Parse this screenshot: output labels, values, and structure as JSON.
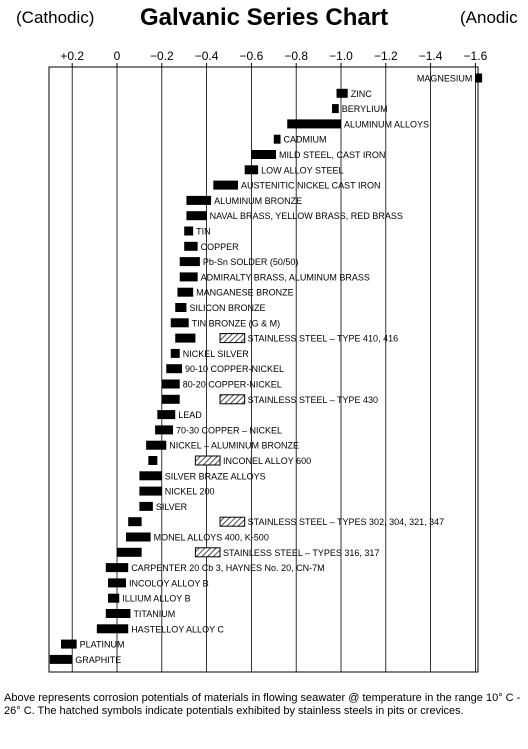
{
  "header": {
    "title": "Galvanic Series Chart",
    "left_note": "(Cathodic)",
    "right_note": "(Anodic"
  },
  "footer": {
    "text": "Above represents corrosion potentials of materials in flowing seawater @ temperature in the range 10° C - 26° C. The hatched symbols indicate potentials exhibited by stainless steels in pits or crevices."
  },
  "chart_data": {
    "type": "bar",
    "orientation": "horizontal-range",
    "title": "Galvanic Series Chart",
    "xlabel": "",
    "ylabel": "",
    "x_axis_reversed": true,
    "xlim": [
      0.3,
      -1.65
    ],
    "x_ticks": [
      0.2,
      0,
      -0.2,
      -0.4,
      -0.6,
      -0.8,
      -1.0,
      -1.2,
      -1.4,
      -1.6
    ],
    "x_tick_labels": [
      "+0.2",
      "0",
      "−0.2",
      "−0.4",
      "−0.6",
      "−0.8",
      "−1.0",
      "−1.2",
      "−1.4",
      "−1.6"
    ],
    "grid": true,
    "legend": "none",
    "colors": {
      "solid": "#000000",
      "hatched": "#000000"
    },
    "categories": [
      "MAGNESIUM",
      "ZINC",
      "BERYLIUM",
      "ALUMINUM ALLOYS",
      "CADMIUM",
      "MILD STEEL, CAST IRON",
      "LOW ALLOY STEEL",
      "AUSTENITIC NICKEL CAST IRON",
      "ALUMINUM BRONZE",
      "NAVAL BRASS, YELLOW BRASS, RED BRASS",
      "TIN",
      "COPPER",
      "Pb-Sn SOLDER (50/50)",
      "ADMIRALTY BRASS, ALUMINUM BRASS",
      "MANGANESE BRONZE",
      "SILICON BRONZE",
      "TIN BRONZE (G & M)",
      "STAINLESS STEEL – TYPE 410, 416",
      "NICKEL SILVER",
      "90-10 COPPER-NICKEL",
      "80-20 COPPER-NICKEL",
      "STAINLESS STEEL – TYPE 430",
      "LEAD",
      "70-30 COPPER – NICKEL",
      "NICKEL – ALUMINUM BRONZE",
      "INCONEL ALLOY 600",
      "SILVER BRAZE ALLOYS",
      "NICKEL 200",
      "SILVER",
      "STAINLESS STEEL – TYPES 302, 304, 321, 347",
      "MONEL ALLOYS 400, K-500",
      "STAINLESS STEEL – TYPES 316, 317",
      "CARPENTER 20 Cb 3, HAYNES No. 20, CN-7M",
      "INCOLOY ALLOY B",
      "ILLIUM ALLOY B",
      "TITANIUM",
      "HASTELLOY ALLOY C",
      "PLATINUM",
      "GRAPHITE"
    ],
    "series": [
      {
        "label": "MAGNESIUM",
        "solid": [
          -1.6,
          -1.63
        ]
      },
      {
        "label": "ZINC",
        "solid": [
          -0.98,
          -1.03
        ]
      },
      {
        "label": "BERYLIUM",
        "solid": [
          -0.96,
          -0.99
        ]
      },
      {
        "label": "ALUMINUM ALLOYS",
        "solid": [
          -0.76,
          -1.0
        ]
      },
      {
        "label": "CADMIUM",
        "solid": [
          -0.7,
          -0.73
        ]
      },
      {
        "label": "MILD STEEL, CAST IRON",
        "solid": [
          -0.6,
          -0.71
        ]
      },
      {
        "label": "LOW ALLOY STEEL",
        "solid": [
          -0.57,
          -0.63
        ]
      },
      {
        "label": "AUSTENITIC NICKEL CAST IRON",
        "solid": [
          -0.43,
          -0.54
        ]
      },
      {
        "label": "ALUMINUM BRONZE",
        "solid": [
          -0.31,
          -0.42
        ]
      },
      {
        "label": "NAVAL BRASS, YELLOW BRASS, RED BRASS",
        "solid": [
          -0.31,
          -0.4
        ]
      },
      {
        "label": "TIN",
        "solid": [
          -0.3,
          -0.34
        ]
      },
      {
        "label": "COPPER",
        "solid": [
          -0.3,
          -0.36
        ]
      },
      {
        "label": "Pb-Sn SOLDER (50/50)",
        "solid": [
          -0.28,
          -0.37
        ]
      },
      {
        "label": "ADMIRALTY BRASS, ALUMINUM BRASS",
        "solid": [
          -0.28,
          -0.36
        ]
      },
      {
        "label": "MANGANESE BRONZE",
        "solid": [
          -0.27,
          -0.34
        ]
      },
      {
        "label": "SILICON BRONZE",
        "solid": [
          -0.26,
          -0.31
        ]
      },
      {
        "label": "TIN BRONZE (G & M)",
        "solid": [
          -0.24,
          -0.32
        ]
      },
      {
        "label": "STAINLESS STEEL – TYPE 410, 416",
        "solid": [
          -0.26,
          -0.35
        ],
        "hatched": [
          -0.46,
          -0.57
        ]
      },
      {
        "label": "NICKEL SILVER",
        "solid": [
          -0.24,
          -0.28
        ]
      },
      {
        "label": "90-10 COPPER-NICKEL",
        "solid": [
          -0.22,
          -0.29
        ]
      },
      {
        "label": "80-20 COPPER-NICKEL",
        "solid": [
          -0.2,
          -0.28
        ]
      },
      {
        "label": "STAINLESS STEEL – TYPE 430",
        "solid": [
          -0.2,
          -0.28
        ],
        "hatched": [
          -0.46,
          -0.57
        ]
      },
      {
        "label": "LEAD",
        "solid": [
          -0.18,
          -0.26
        ]
      },
      {
        "label": "70-30 COPPER – NICKEL",
        "solid": [
          -0.17,
          -0.25
        ]
      },
      {
        "label": "NICKEL – ALUMINUM BRONZE",
        "solid": [
          -0.13,
          -0.22
        ]
      },
      {
        "label": "INCONEL ALLOY 600",
        "solid": [
          -0.14,
          -0.18
        ],
        "hatched": [
          -0.35,
          -0.46
        ]
      },
      {
        "label": "SILVER BRAZE ALLOYS",
        "solid": [
          -0.1,
          -0.2
        ]
      },
      {
        "label": "NICKEL 200",
        "solid": [
          -0.1,
          -0.2
        ]
      },
      {
        "label": "SILVER",
        "solid": [
          -0.1,
          -0.16
        ]
      },
      {
        "label": "STAINLESS STEEL – TYPES 302, 304, 321, 347",
        "solid": [
          -0.05,
          -0.11
        ],
        "hatched": [
          -0.46,
          -0.57
        ]
      },
      {
        "label": "MONEL ALLOYS 400, K-500",
        "solid": [
          -0.04,
          -0.15
        ]
      },
      {
        "label": "STAINLESS STEEL – TYPES 316, 317",
        "solid": [
          0.0,
          -0.11
        ],
        "hatched": [
          -0.35,
          -0.46
        ]
      },
      {
        "label": "CARPENTER 20 Cb 3, HAYNES No. 20, CN-7M",
        "solid": [
          0.05,
          -0.05
        ]
      },
      {
        "label": "INCOLOY ALLOY B",
        "solid": [
          0.04,
          -0.04
        ]
      },
      {
        "label": "ILLIUM ALLOY B",
        "solid": [
          0.04,
          -0.01
        ]
      },
      {
        "label": "TITANIUM",
        "solid": [
          0.05,
          -0.06
        ]
      },
      {
        "label": "HASTELLOY ALLOY C",
        "solid": [
          0.09,
          -0.05
        ]
      },
      {
        "label": "PLATINUM",
        "solid": [
          0.25,
          0.18
        ]
      },
      {
        "label": "GRAPHITE",
        "solid": [
          0.3,
          0.2
        ]
      }
    ]
  }
}
